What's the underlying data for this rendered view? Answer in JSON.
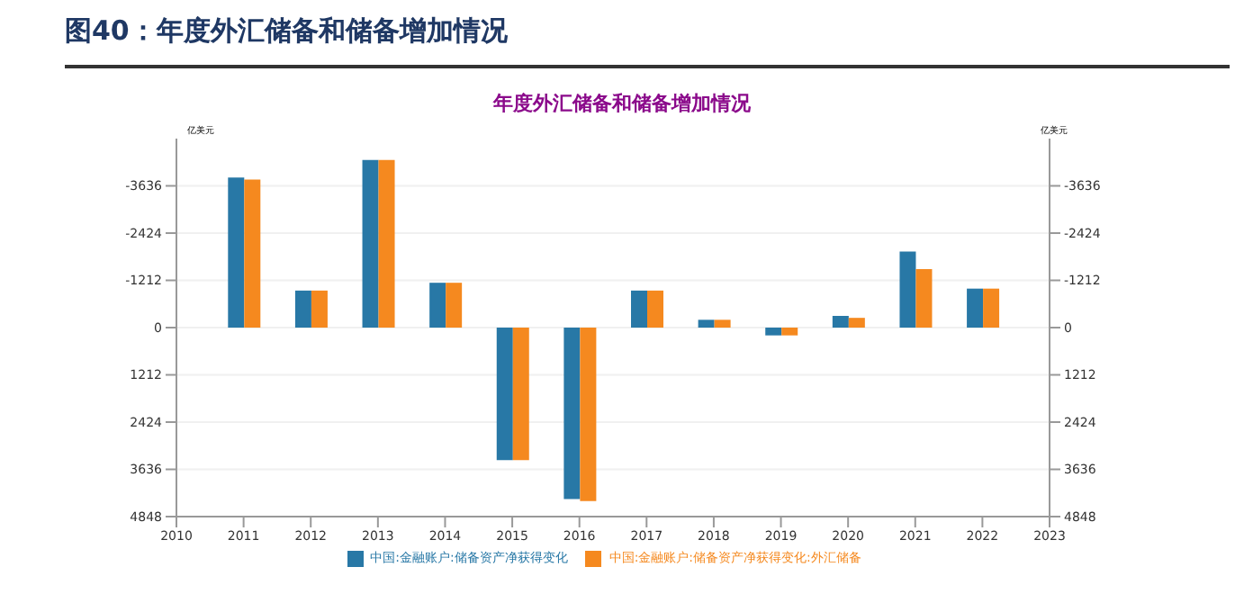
{
  "chart_data": {
    "type": "bar",
    "title": "图40：年度外汇储备和储备增加情况",
    "subtitle": "年度外汇储备和储备增加情况",
    "ylabel": "亿美元",
    "y2label": "亿美元",
    "x": [
      2011,
      2012,
      2013,
      2014,
      2015,
      2016,
      2017,
      2018,
      2019,
      2020,
      2021,
      2022
    ],
    "series": [
      {
        "name": "中国:金融账户:储备资产净获得变化",
        "color": "#2878a6",
        "values": [
          -3850,
          -950,
          -4300,
          -1150,
          3400,
          4400,
          -950,
          -200,
          200,
          -300,
          -1950,
          -1000
        ]
      },
      {
        "name": "中国:金融账户:储备资产净获得变化:外汇储备",
        "color": "#f5891f",
        "values": [
          -3800,
          -950,
          -4300,
          -1150,
          3400,
          4450,
          -950,
          -200,
          200,
          -250,
          -1500,
          -1000
        ]
      }
    ],
    "xlim": [
      2010,
      2023
    ],
    "xticks": [
      2010,
      2011,
      2012,
      2013,
      2014,
      2015,
      2016,
      2017,
      2018,
      2019,
      2020,
      2021,
      2022,
      2023
    ],
    "ylim": [
      4848,
      -4848
    ],
    "yticks": [
      -3636,
      -2424,
      -1212,
      0,
      1212,
      2424,
      3636,
      4848
    ],
    "y2lim": [
      4848,
      -4848
    ],
    "y2ticks": [
      -3636,
      -2424,
      -1212,
      0,
      1212,
      2424,
      3636,
      4848
    ],
    "grid": "y",
    "legend": "bottom"
  }
}
